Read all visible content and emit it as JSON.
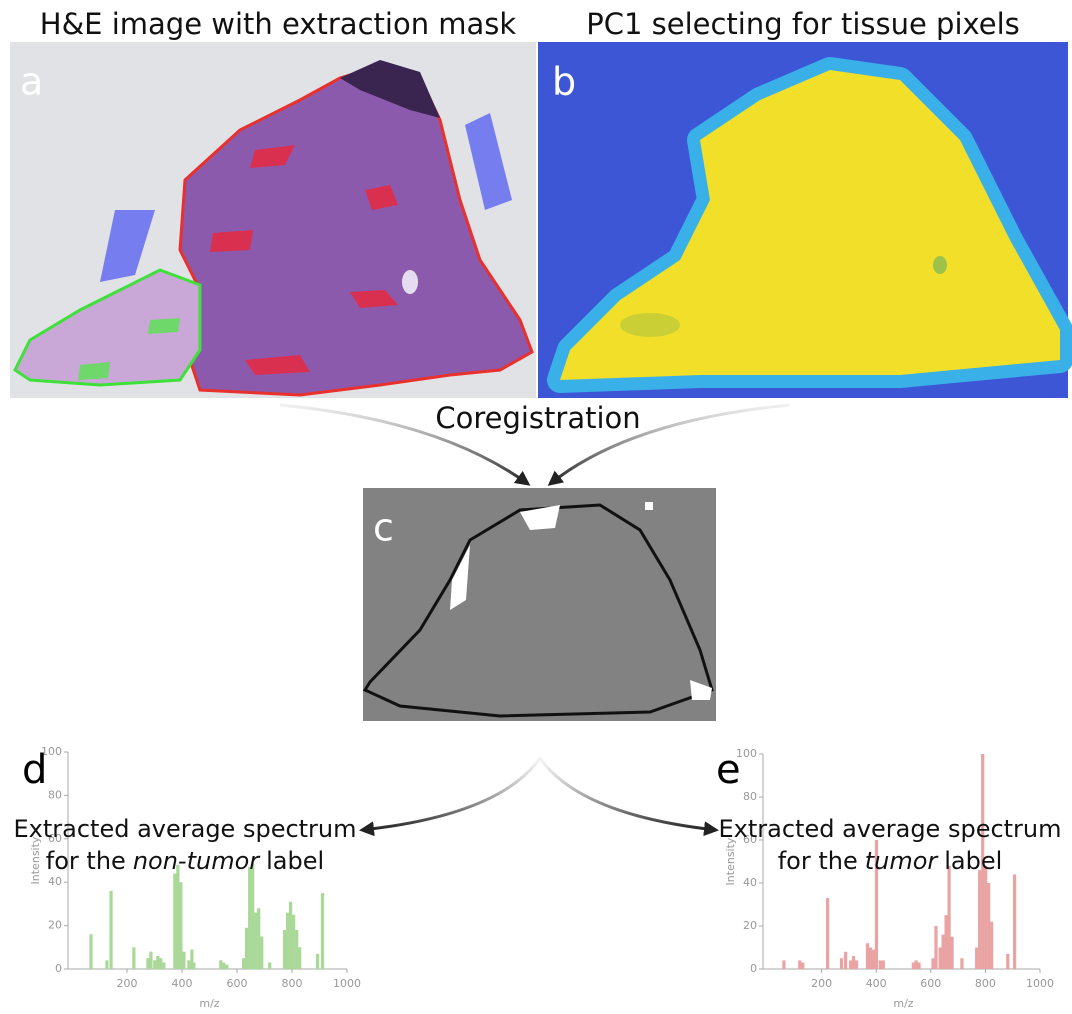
{
  "panels": {
    "a": {
      "title": "H&E image with extraction mask",
      "letter": "a"
    },
    "b": {
      "title": "PC1 selecting for tissue pixels",
      "letter": "b"
    },
    "c": {
      "letter": "c"
    },
    "coregistration": "Coregistration"
  },
  "chart_data": [
    {
      "type": "bar",
      "letter": "d",
      "annotation": {
        "line1": "Extracted average spectrum",
        "pre": "for the",
        "emphasis": "non-tumor",
        "post": "label"
      },
      "xlabel": "m/z",
      "ylabel": "Intensity",
      "color": "#a9d898",
      "x": [
        69,
        127,
        142,
        225,
        276,
        287,
        301,
        312,
        323,
        334,
        374,
        385,
        396,
        407,
        425,
        436,
        443,
        541,
        552,
        563,
        624,
        635,
        646,
        657,
        668,
        679,
        690,
        719,
        773,
        784,
        795,
        806,
        817,
        828,
        893,
        911
      ],
      "values": [
        16,
        4,
        36,
        10,
        5,
        8,
        4,
        6,
        5,
        3,
        44,
        48,
        40,
        8,
        4,
        9,
        3,
        4,
        3,
        2,
        5,
        19,
        47,
        49,
        26,
        28,
        15,
        3,
        18,
        26,
        31,
        25,
        18,
        10,
        7,
        35
      ],
      "xlim": [
        0,
        1000
      ],
      "xticks": [
        200,
        400,
        600,
        800,
        1000
      ],
      "ylim": [
        0,
        100
      ],
      "yticks": [
        0,
        20,
        40,
        60,
        80,
        100
      ]
    },
    {
      "type": "bar",
      "letter": "e",
      "annotation": {
        "line1": "Extracted average spectrum",
        "pre": "for the",
        "emphasis": "tumor",
        "post": "label"
      },
      "xlabel": "m/z",
      "ylabel": "Intensity",
      "color": "#eaa3a3",
      "x": [
        62,
        120,
        131,
        222,
        273,
        288,
        306,
        317,
        328,
        368,
        379,
        390,
        401,
        415,
        426,
        536,
        546,
        557,
        608,
        619,
        634,
        645,
        656,
        667,
        678,
        714,
        768,
        779,
        790,
        801,
        812,
        823,
        882,
        907
      ],
      "values": [
        4,
        4,
        3,
        33,
        5,
        8,
        4,
        6,
        4,
        12,
        10,
        9,
        60,
        4,
        4,
        3,
        4,
        3,
        5,
        20,
        10,
        16,
        25,
        48,
        15,
        5,
        10,
        46,
        100,
        48,
        40,
        22,
        7,
        44
      ],
      "xlim": [
        0,
        1000
      ],
      "xticks": [
        200,
        400,
        600,
        800,
        1000
      ],
      "ylim": [
        0,
        100
      ],
      "yticks": [
        0,
        20,
        40,
        60,
        80,
        100
      ]
    }
  ]
}
